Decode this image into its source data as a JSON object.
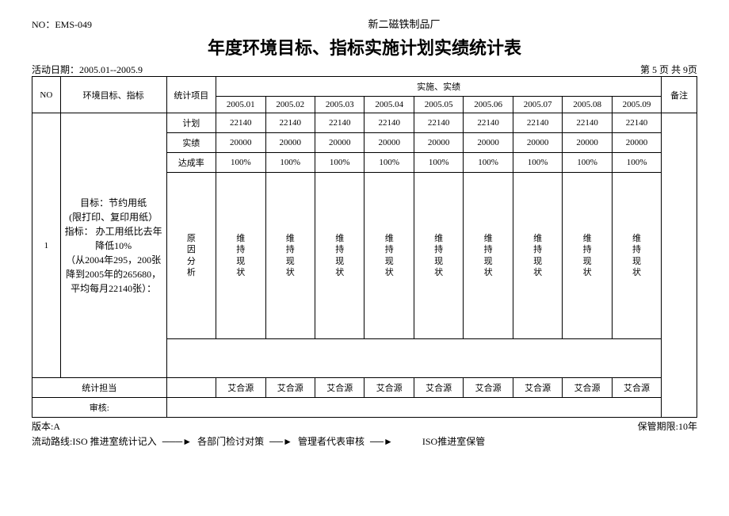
{
  "doc_no_label": "NO：",
  "doc_no": "EMS-049",
  "company": "新二磁铁制品厂",
  "title": "年度环境目标、指标实施计划实绩统计表",
  "activity_label": "活动日期：",
  "activity_period": "2005.01--2005.9",
  "page_info": "第 5 页 共  9页",
  "headers": {
    "no": "NO",
    "target": "环境目标、指标",
    "stat_item": "统计项目",
    "impl": "实施、实绩",
    "note": "备注",
    "months": [
      "2005.01",
      "2005.02",
      "2005.03",
      "2005.04",
      "2005.05",
      "2005.06",
      "2005.07",
      "2005.08",
      "2005.09"
    ]
  },
  "row_labels": {
    "plan": "计划",
    "actual": "实绩",
    "rate": "达成率",
    "cause": "原因分析",
    "statistician": "统计担当",
    "reviewer": "审核:"
  },
  "data": {
    "no": "1",
    "target_text": "目标：节约用纸\n(限打印、复印用纸）\n指标： 办工用纸比去年降低10%\n（从2004年295，200张降到2005年的265680，平均每月22140张）：",
    "plan": [
      "22140",
      "22140",
      "22140",
      "22140",
      "22140",
      "22140",
      "22140",
      "22140",
      "22140"
    ],
    "actual": [
      "20000",
      "20000",
      "20000",
      "20000",
      "20000",
      "20000",
      "20000",
      "20000",
      "20000"
    ],
    "rate": [
      "100%",
      "100%",
      "100%",
      "100%",
      "100%",
      "100%",
      "100%",
      "100%",
      "100%"
    ],
    "cause_vertical": "维持现状",
    "cause_label_vertical": "原因分析",
    "statistician_name": "艾合源"
  },
  "footer": {
    "version": "版本:A",
    "retain": "保管期限:10年",
    "flow_label": "流动路线:",
    "flow_steps": [
      "ISO 推进室统计记入",
      "各部门检讨对策",
      "管理者代表审核",
      "ISO推进室保管"
    ]
  }
}
